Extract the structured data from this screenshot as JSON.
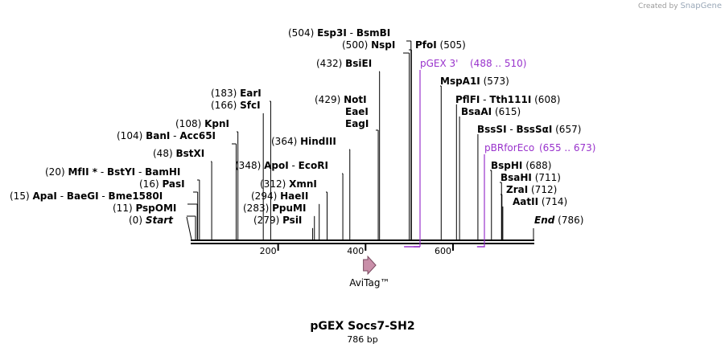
{
  "brand": {
    "created_by": "Created by",
    "logo": "SnapGene"
  },
  "plasmid": {
    "name": "pGEX Socs7-SH2",
    "length": "786 bp"
  },
  "start_label": {
    "pos": "(0)",
    "text": "Start"
  },
  "end_label": {
    "text": "End",
    "pos": "(786)"
  },
  "ruler": [
    "200",
    "400",
    "600"
  ],
  "sites": [
    {
      "pos": "(11)",
      "names": [
        "PspOMI"
      ],
      "coord": 11
    },
    {
      "pos": "(15)",
      "names": [
        "ApaI",
        "BaeGI",
        "Bme1580I"
      ],
      "coord": 15
    },
    {
      "pos": "(16)",
      "names": [
        "PasI"
      ],
      "coord": 16
    },
    {
      "pos": "(20)",
      "names": [
        "MfII *",
        "BstYI",
        "BamHI"
      ],
      "coord": 20
    },
    {
      "pos": "(48)",
      "names": [
        "BstXI"
      ],
      "coord": 48
    },
    {
      "pos": "(104)",
      "names": [
        "BanI",
        "Acc65I"
      ],
      "coord": 104
    },
    {
      "pos": "(108)",
      "names": [
        "KpnI"
      ],
      "coord": 108
    },
    {
      "pos": "(166)",
      "names": [
        "SfcI"
      ],
      "coord": 166
    },
    {
      "pos": "(183)",
      "names": [
        "EarI"
      ],
      "coord": 183
    },
    {
      "pos": "(279)",
      "names": [
        "PsiI"
      ],
      "coord": 279
    },
    {
      "pos": "(283)",
      "names": [
        "PpuMI"
      ],
      "coord": 283
    },
    {
      "pos": "(294)",
      "names": [
        "HaeII"
      ],
      "coord": 294
    },
    {
      "pos": "(312)",
      "names": [
        "XmnI"
      ],
      "coord": 312
    },
    {
      "pos": "(348)",
      "names": [
        "ApoI",
        "EcoRI"
      ],
      "coord": 348
    },
    {
      "pos": "(364)",
      "names": [
        "HindIII"
      ],
      "coord": 364
    },
    {
      "pos": "(429)",
      "names": [
        "NotI",
        "EaeI",
        "EagI"
      ],
      "coord": 429
    },
    {
      "pos": "(432)",
      "names": [
        "BsiEI"
      ],
      "coord": 432
    },
    {
      "pos": "(500)",
      "names": [
        "NspI"
      ],
      "coord": 500
    },
    {
      "pos": "(504)",
      "names": [
        "Esp3I",
        "BsmBI"
      ],
      "coord": 504
    },
    {
      "pos": "(505)",
      "names": [
        "PfoI"
      ],
      "coord": 505
    },
    {
      "pos": "(573)",
      "names": [
        "MspA1I"
      ],
      "coord": 573
    },
    {
      "pos": "(608)",
      "names": [
        "PflFI",
        "Tth111I"
      ],
      "coord": 608
    },
    {
      "pos": "(615)",
      "names": [
        "BsaAI"
      ],
      "coord": 615
    },
    {
      "pos": "(657)",
      "names": [
        "BssSI",
        "BssSαI"
      ],
      "coord": 657
    },
    {
      "pos": "(688)",
      "names": [
        "BspHI"
      ],
      "coord": 688
    },
    {
      "pos": "(711)",
      "names": [
        "BsaHI"
      ],
      "coord": 711
    },
    {
      "pos": "(712)",
      "names": [
        "ZraI"
      ],
      "coord": 712
    },
    {
      "pos": "(714)",
      "names": [
        "AatII"
      ],
      "coord": 714
    }
  ],
  "primers": [
    {
      "name": "pGEX 3'",
      "range": "(488 .. 510)",
      "start": 488,
      "end": 510
    },
    {
      "name": "pBRforEco",
      "range": "(655 .. 673)",
      "start": 655,
      "end": 673
    }
  ],
  "feature": {
    "name": "AviTag™",
    "start": 384,
    "end": 429
  },
  "colors": {
    "primer": "#9933cc",
    "feature": "#c98fa9",
    "line": "#000000"
  }
}
